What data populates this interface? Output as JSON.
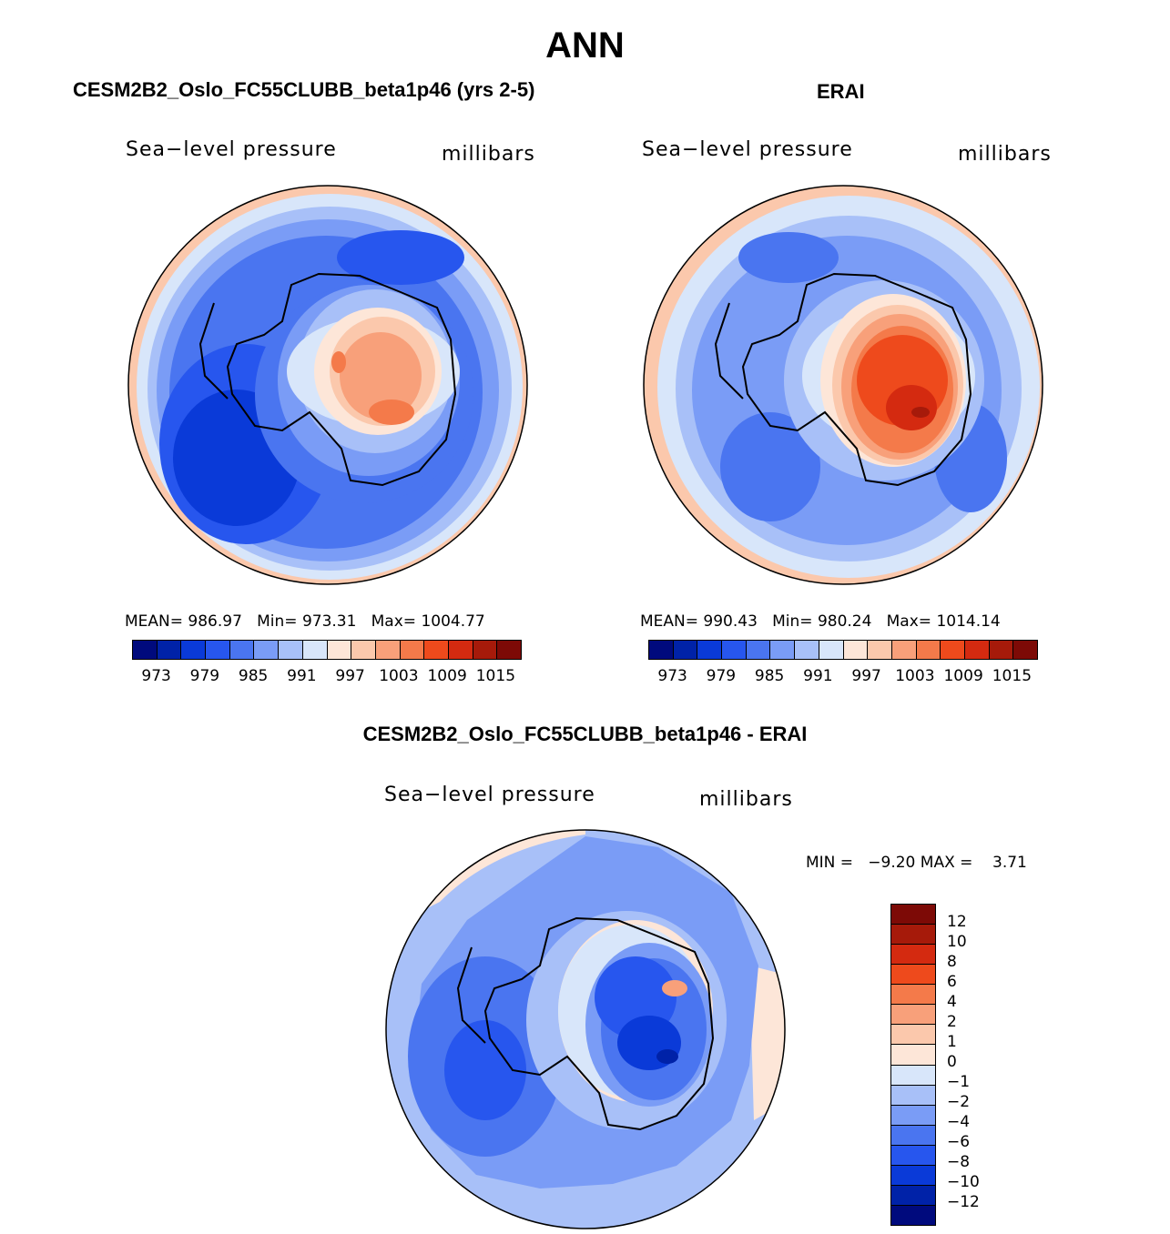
{
  "title": "ANN",
  "panels": [
    {
      "title": "CESM2B2_Oslo_FC55CLUBB_beta1p46 (yrs 2-5)",
      "variable": "Sea−level pressure",
      "units": "millibars",
      "stats": {
        "mean_label": "MEAN=",
        "mean": "986.97",
        "min_label": "Min=",
        "min": "973.31",
        "max_label": "Max=",
        "max": "1004.77"
      },
      "colorbar": {
        "colors": [
          "#000a7d",
          "#0022a8",
          "#0a3ad8",
          "#2756ee",
          "#4a75f0",
          "#7a9cf6",
          "#a8c0f8",
          "#d8e6fa",
          "#fde6d8",
          "#fbc8ac",
          "#f8a07a",
          "#f47a4a",
          "#ee4a1c",
          "#d42a10",
          "#a61a0a",
          "#7d0a06"
        ],
        "labels": [
          "973",
          "979",
          "985",
          "991",
          "997",
          "1003",
          "1009",
          "1015"
        ]
      }
    },
    {
      "title": "ERAI",
      "variable": "Sea−level pressure",
      "units": "millibars",
      "stats": {
        "mean_label": "MEAN=",
        "mean": "990.43",
        "min_label": "Min=",
        "min": "980.24",
        "max_label": "Max=",
        "max": "1014.14"
      },
      "colorbar": {
        "colors": [
          "#000a7d",
          "#0022a8",
          "#0a3ad8",
          "#2756ee",
          "#4a75f0",
          "#7a9cf6",
          "#a8c0f8",
          "#d8e6fa",
          "#fde6d8",
          "#fbc8ac",
          "#f8a07a",
          "#f47a4a",
          "#ee4a1c",
          "#d42a10",
          "#a61a0a",
          "#7d0a06"
        ],
        "labels": [
          "973",
          "979",
          "985",
          "991",
          "997",
          "1003",
          "1009",
          "1015"
        ]
      }
    },
    {
      "title": "CESM2B2_Oslo_FC55CLUBB_beta1p46 - ERAI",
      "variable": "Sea−level pressure",
      "units": "millibars",
      "stats": {
        "min_label": "MIN =",
        "min": "−9.20",
        "max_label": "MAX =",
        "max": "3.71"
      },
      "colorbar": {
        "colors": [
          "#7d0a06",
          "#a61a0a",
          "#d42a10",
          "#ee4a1c",
          "#f47a4a",
          "#f8a07a",
          "#fbc8ac",
          "#fde6d8",
          "#d8e6fa",
          "#a8c0f8",
          "#7a9cf6",
          "#4a75f0",
          "#2756ee",
          "#0a3ad8",
          "#0022a8",
          "#000a7d"
        ],
        "labels": [
          "12",
          "10",
          "8",
          "6",
          "4",
          "2",
          "1",
          "0",
          "−1",
          "−2",
          "−4",
          "−6",
          "−8",
          "−10",
          "−12"
        ]
      }
    }
  ]
}
